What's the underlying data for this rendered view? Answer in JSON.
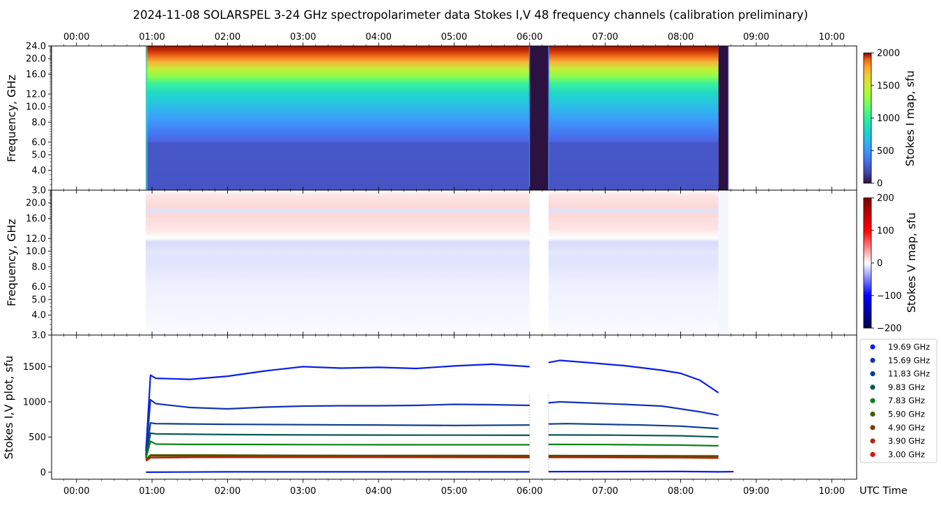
{
  "title": "2024-11-08  SOLARSPEL  3-24 GHz spectropolarimeter data   Stokes I,V   48 frequency channels   (calibration preliminary)",
  "chart_data": [
    {
      "type": "heatmap",
      "name": "stokes-i-map",
      "ylabel": "Frequency, GHz",
      "colorbar_label": "Stokes I map, sfu",
      "colorbar_ticks": [
        "0",
        "500",
        "1000",
        "1500",
        "2000"
      ],
      "colorbar_range": [
        0,
        2000
      ],
      "colormap": "jet",
      "yticks": [
        "3.0",
        "4.0",
        "5.0",
        "6.0",
        "8.0",
        "10.0",
        "12.0",
        "16.0",
        "20.0",
        "24.0"
      ],
      "ylim": [
        3.0,
        24.0
      ],
      "y_scale": "log",
      "xticks_top": [
        "00:00",
        "01:00",
        "02:00",
        "03:00",
        "04:00",
        "05:00",
        "06:00",
        "07:00",
        "08:00",
        "09:00",
        "10:00"
      ],
      "data_segments": [
        [
          "00:55",
          "06:00"
        ],
        [
          "06:15",
          "08:30"
        ]
      ],
      "gaps": [
        [
          "06:00",
          "06:15"
        ],
        [
          "08:30",
          "08:38"
        ]
      ]
    },
    {
      "type": "heatmap",
      "name": "stokes-v-map",
      "ylabel": "Frequency, GHz",
      "colorbar_label": "Stokes V map, sfu",
      "colorbar_ticks": [
        "200",
        "100",
        "0",
        "−100",
        "−200"
      ],
      "colorbar_range": [
        -200,
        200
      ],
      "colormap": "seismic",
      "yticks": [
        "3.0",
        "4.0",
        "5.0",
        "6.0",
        "8.0",
        "10.0",
        "12.0",
        "16.0",
        "20.0"
      ],
      "ylim": [
        3.0,
        24.0
      ],
      "y_scale": "log"
    },
    {
      "type": "scatter",
      "name": "stokes-iv-plot",
      "ylabel": "Stokes I,V plot, sfu",
      "xlabel": "UTC Time",
      "yticks": [
        "0",
        "500",
        "1000",
        "1500"
      ],
      "ylim": [
        -100,
        1950
      ],
      "xticks": [
        "00:00",
        "01:00",
        "02:00",
        "03:00",
        "04:00",
        "05:00",
        "06:00",
        "07:00",
        "08:00",
        "09:00",
        "10:00"
      ],
      "xlim_hours": [
        -0.33,
        10.33
      ],
      "gap_hours": [
        6.0,
        6.25
      ],
      "legend_position": "right",
      "series": [
        {
          "name": "19.69 GHz",
          "color": "#0a1ee6",
          "values": [
            [
              0.92,
              300
            ],
            [
              0.98,
              1380
            ],
            [
              1.05,
              1335
            ],
            [
              1.5,
              1320
            ],
            [
              2.0,
              1365
            ],
            [
              2.5,
              1440
            ],
            [
              3.0,
              1500
            ],
            [
              3.5,
              1480
            ],
            [
              4.0,
              1490
            ],
            [
              4.5,
              1475
            ],
            [
              5.0,
              1510
            ],
            [
              5.5,
              1535
            ],
            [
              6.0,
              1500
            ],
            [
              6.25,
              1560
            ],
            [
              6.4,
              1590
            ],
            [
              6.75,
              1560
            ],
            [
              7.25,
              1515
            ],
            [
              7.75,
              1450
            ],
            [
              8.0,
              1405
            ],
            [
              8.25,
              1310
            ],
            [
              8.5,
              1130
            ]
          ]
        },
        {
          "name": "15.69 GHz",
          "color": "#1432b4",
          "values": [
            [
              0.92,
              250
            ],
            [
              0.98,
              1030
            ],
            [
              1.05,
              975
            ],
            [
              1.5,
              920
            ],
            [
              2.0,
              900
            ],
            [
              2.5,
              925
            ],
            [
              3.0,
              940
            ],
            [
              3.5,
              945
            ],
            [
              4.0,
              945
            ],
            [
              4.5,
              950
            ],
            [
              5.0,
              965
            ],
            [
              5.5,
              960
            ],
            [
              6.0,
              950
            ],
            [
              6.25,
              985
            ],
            [
              6.4,
              1000
            ],
            [
              6.75,
              985
            ],
            [
              7.25,
              965
            ],
            [
              7.75,
              940
            ],
            [
              8.0,
              900
            ],
            [
              8.25,
              860
            ],
            [
              8.5,
              810
            ]
          ]
        },
        {
          "name": "11.83 GHz",
          "color": "#0a3c8c",
          "values": [
            [
              0.92,
              230
            ],
            [
              0.98,
              700
            ],
            [
              1.05,
              690
            ],
            [
              1.5,
              685
            ],
            [
              2.0,
              680
            ],
            [
              3.0,
              675
            ],
            [
              4.0,
              670
            ],
            [
              5.0,
              665
            ],
            [
              6.0,
              670
            ],
            [
              6.25,
              685
            ],
            [
              6.5,
              690
            ],
            [
              7.0,
              680
            ],
            [
              7.5,
              670
            ],
            [
              8.0,
              655
            ],
            [
              8.5,
              620
            ]
          ]
        },
        {
          "name": "9.83 GHz",
          "color": "#0a5a50",
          "values": [
            [
              0.92,
              210
            ],
            [
              0.98,
              555
            ],
            [
              1.05,
              545
            ],
            [
              1.5,
              540
            ],
            [
              2.0,
              535
            ],
            [
              3.0,
              530
            ],
            [
              4.0,
              528
            ],
            [
              5.0,
              527
            ],
            [
              6.0,
              525
            ],
            [
              6.25,
              530
            ],
            [
              7.0,
              528
            ],
            [
              8.0,
              518
            ],
            [
              8.5,
              500
            ]
          ]
        },
        {
          "name": "7.83 GHz",
          "color": "#0a8214",
          "values": [
            [
              0.92,
              200
            ],
            [
              0.98,
              440
            ],
            [
              1.05,
              400
            ],
            [
              1.5,
              395
            ],
            [
              2.0,
              395
            ],
            [
              3.0,
              392
            ],
            [
              4.0,
              390
            ],
            [
              5.0,
              390
            ],
            [
              6.0,
              390
            ],
            [
              6.25,
              395
            ],
            [
              7.0,
              393
            ],
            [
              8.0,
              385
            ],
            [
              8.5,
              375
            ]
          ]
        },
        {
          "name": "5.90 GHz",
          "color": "#465a00",
          "values": [
            [
              0.92,
              180
            ],
            [
              0.98,
              245
            ],
            [
              1.5,
              245
            ],
            [
              2.0,
              243
            ],
            [
              3.0,
              240
            ],
            [
              4.0,
              238
            ],
            [
              5.0,
              238
            ],
            [
              6.0,
              237
            ],
            [
              6.25,
              237
            ],
            [
              7.0,
              236
            ],
            [
              8.0,
              234
            ],
            [
              8.5,
              232
            ]
          ]
        },
        {
          "name": "4.90 GHz",
          "color": "#783c00",
          "values": [
            [
              0.92,
              170
            ],
            [
              0.98,
              230
            ],
            [
              1.5,
              230
            ],
            [
              2.0,
              228
            ],
            [
              3.0,
              226
            ],
            [
              4.0,
              225
            ],
            [
              5.0,
              225
            ],
            [
              6.0,
              224
            ],
            [
              6.25,
              224
            ],
            [
              7.0,
              223
            ],
            [
              8.0,
              222
            ],
            [
              8.5,
              220
            ]
          ]
        },
        {
          "name": "3.90 GHz",
          "color": "#b42800",
          "values": [
            [
              0.92,
              160
            ],
            [
              0.98,
              205
            ],
            [
              1.5,
              210
            ],
            [
              2.0,
              212
            ],
            [
              3.0,
              212
            ],
            [
              4.0,
              212
            ],
            [
              5.0,
              210
            ],
            [
              6.0,
              208
            ],
            [
              6.25,
              210
            ],
            [
              7.0,
              209
            ],
            [
              8.0,
              205
            ],
            [
              8.5,
              200
            ]
          ]
        },
        {
          "name": "3.00 GHz",
          "color": "#e60a0a",
          "values": []
        }
      ],
      "v_baseline": {
        "color": "#0a1ee6",
        "values": [
          [
            0.92,
            0
          ],
          [
            2.0,
            5
          ],
          [
            4.0,
            5
          ],
          [
            6.0,
            5
          ],
          [
            6.25,
            8
          ],
          [
            8.0,
            10
          ],
          [
            8.5,
            5
          ],
          [
            8.7,
            8
          ]
        ]
      }
    }
  ]
}
